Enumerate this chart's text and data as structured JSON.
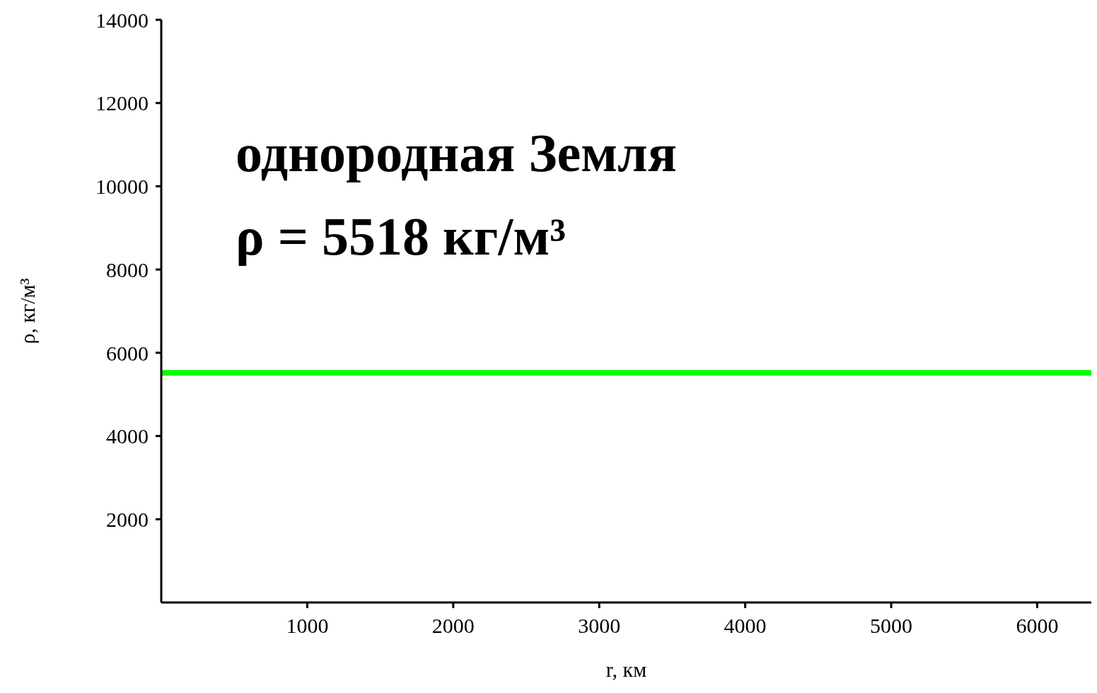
{
  "chart_data": {
    "type": "line",
    "xlabel": "r, км",
    "ylabel": "ρ, кг/м³",
    "annotations": [
      "однородная Земля",
      "ρ = 5518 кг/м³"
    ],
    "x": [
      0,
      6371
    ],
    "series": [
      {
        "color": "#00ff00",
        "values": [
          5518,
          5518
        ]
      }
    ],
    "xlim": [
      0,
      6371
    ],
    "xticks": [
      1000,
      2000,
      3000,
      4000,
      5000,
      6000
    ],
    "ylim": [
      0,
      14000
    ],
    "yticks": [
      2000,
      4000,
      6000,
      8000,
      10000,
      12000,
      14000
    ],
    "grid": false,
    "legend": false,
    "marker": "none",
    "line_style": "solid"
  }
}
